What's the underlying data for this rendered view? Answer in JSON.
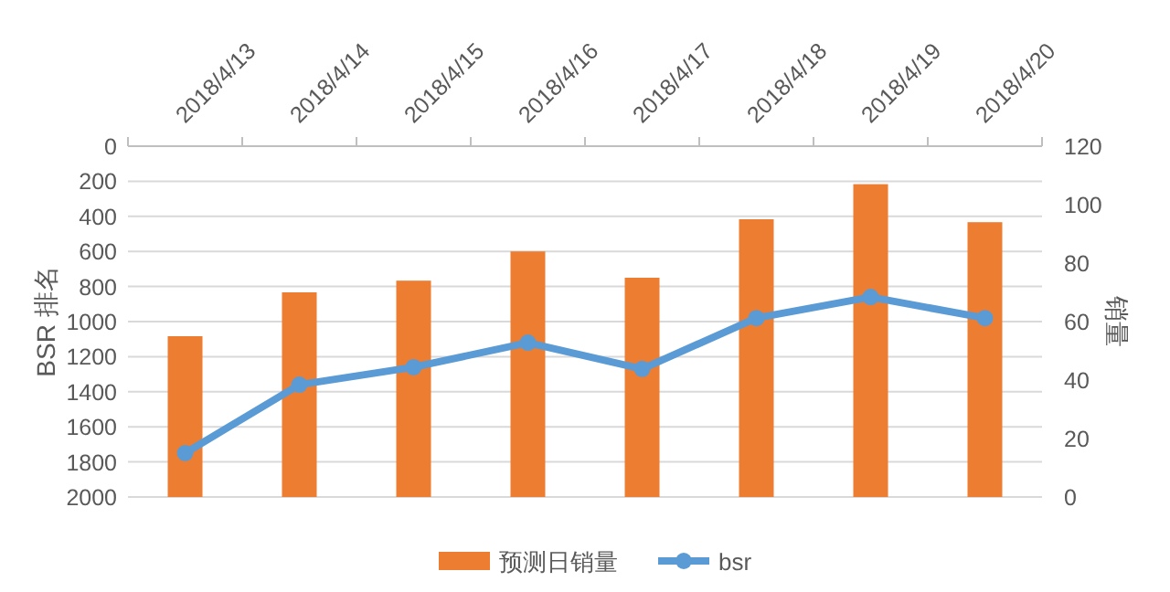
{
  "chart_data": {
    "type": "bar",
    "categories": [
      "2018/4/13",
      "2018/4/14",
      "2018/4/15",
      "2018/4/16",
      "2018/4/17",
      "2018/4/18",
      "2018/4/19",
      "2018/4/20"
    ],
    "series": [
      {
        "name": "预测日销量",
        "axis": "y2",
        "color": "#ed7d31",
        "values": [
          55,
          70,
          74,
          84,
          75,
          95,
          107,
          94
        ]
      },
      {
        "name": "bsr",
        "type": "line",
        "axis": "y",
        "color": "#5b9bd5",
        "marker": "circle",
        "values": [
          1750,
          1360,
          1260,
          1120,
          1270,
          980,
          860,
          980
        ]
      }
    ],
    "ylabel": "BSR 排名",
    "y2label": "销量",
    "ylim": [
      2000,
      0
    ],
    "yticks": [
      0,
      200,
      400,
      600,
      800,
      1000,
      1200,
      1400,
      1600,
      1800,
      2000
    ],
    "y2lim": [
      0,
      120
    ],
    "y2ticks": [
      0,
      20,
      40,
      60,
      80,
      100,
      120
    ],
    "grid": "y",
    "legend": "bottom"
  }
}
